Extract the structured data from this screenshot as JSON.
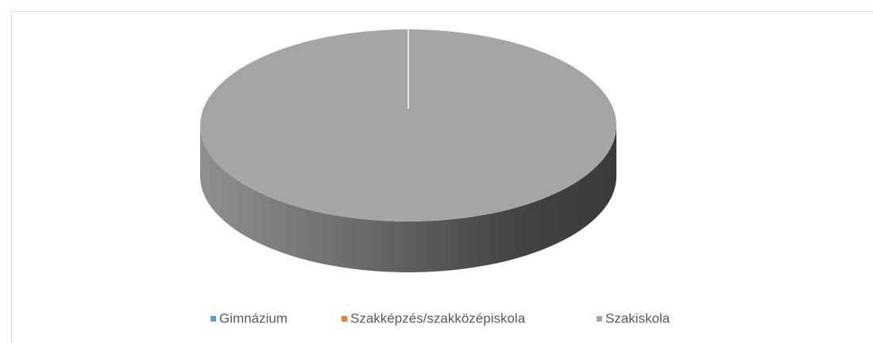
{
  "chart_data": {
    "type": "pie",
    "pie3d": true,
    "categories": [
      "Gimnázium",
      "Szakképzés/szakközépiskola",
      "Szakiskola"
    ],
    "values": [
      0,
      0,
      100
    ],
    "colors": [
      "#5b9bd5",
      "#ed7d31",
      "#a5a5a5"
    ],
    "legend": "bottom"
  }
}
